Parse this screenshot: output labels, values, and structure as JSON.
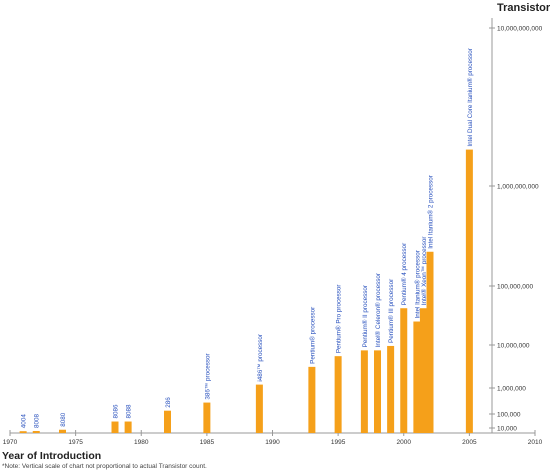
{
  "chart_data": {
    "type": "bar",
    "ylabel": "Transistors*",
    "xlabel": "Year of Introduction",
    "note": "*Note: Vertical scale of chart not proportional to actual Transistor count.",
    "xlim": [
      1970,
      2010
    ],
    "x_ticks": [
      "1970",
      "1975",
      "1980",
      "1985",
      "1990",
      "1995",
      "2000",
      "2005",
      "2010"
    ],
    "y_ticks": [
      {
        "label": "10,000,000,000",
        "value": 10000000000
      },
      {
        "label": "1,000,000,000",
        "value": 1000000000
      },
      {
        "label": "100,000,000",
        "value": 100000000
      },
      {
        "label": "10,000,000",
        "value": 10000000
      },
      {
        "label": "1,000,000",
        "value": 1000000
      },
      {
        "label": "100,000",
        "value": 100000
      },
      {
        "label": "10,000",
        "value": 10000
      }
    ],
    "bars": [
      {
        "year": 1971,
        "label": "4004",
        "value": 2300
      },
      {
        "year": 1972,
        "label": "8008",
        "value": 2500
      },
      {
        "year": 1974,
        "label": "8080",
        "value": 4500
      },
      {
        "year": 1978,
        "label": "8086",
        "value": 29000
      },
      {
        "year": 1979,
        "label": "8088",
        "value": 29000
      },
      {
        "year": 1982,
        "label": "286",
        "value": 134000
      },
      {
        "year": 1985,
        "label": "386™ processor",
        "value": 275000
      },
      {
        "year": 1989,
        "label": "i486™ processor",
        "value": 1200000
      },
      {
        "year": 1993,
        "label": "Pentium® processor",
        "value": 3100000
      },
      {
        "year": 1995,
        "label": "Pentium® Pro processor",
        "value": 5500000
      },
      {
        "year": 1997,
        "label": "Pentium® II processor",
        "value": 7500000
      },
      {
        "year": 1998,
        "label": "Intel® Celeron® processor",
        "value": 7500000
      },
      {
        "year": 1999,
        "label": "Pentium® III processor",
        "value": 9500000
      },
      {
        "year": 2000,
        "label": "Pentium® 4 processor",
        "value": 42000000
      },
      {
        "year": 2001,
        "label": "Intel Itanium® processor",
        "value": 25000000
      },
      {
        "year": 2001.5,
        "label": "Intel® Xeon™ processor",
        "value": 42000000
      },
      {
        "year": 2002,
        "label": "Intel Itanium® 2 processor",
        "value": 220000000
      },
      {
        "year": 2005,
        "label": "Intel Dual Core Itanium® processor",
        "value": 1700000000
      }
    ],
    "colors": {
      "bar": "#f5a01a",
      "label": "#2a52be",
      "axis": "#999999",
      "text": "#333333"
    }
  }
}
